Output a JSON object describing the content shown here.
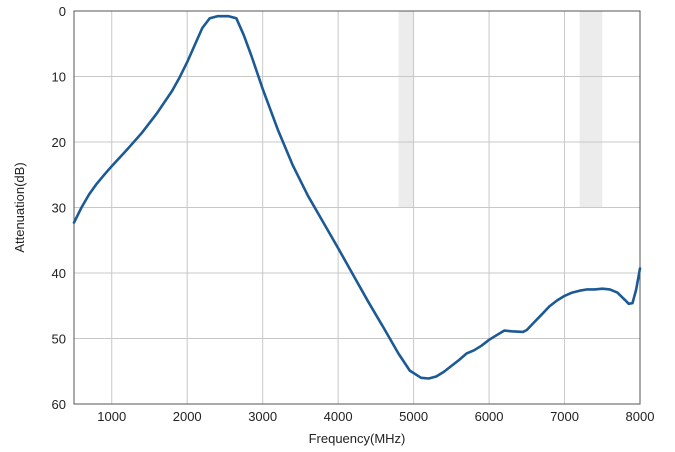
{
  "chart_data": {
    "type": "line",
    "xlabel": "Frequency(MHz)",
    "ylabel": "Attenuation(dB)",
    "xlim": [
      500,
      8000
    ],
    "ylim": [
      0,
      60
    ],
    "y_inverted": true,
    "grid": true,
    "legend": "none",
    "x_ticks": [
      1000,
      2000,
      3000,
      4000,
      5000,
      6000,
      7000,
      8000
    ],
    "y_ticks": [
      0,
      10,
      20,
      30,
      40,
      50,
      60
    ],
    "shaded_bands": [
      {
        "x": [
          4800,
          5000
        ],
        "y": [
          0,
          30
        ]
      },
      {
        "x": [
          7200,
          7500
        ],
        "y": [
          0,
          30
        ]
      }
    ],
    "series": [
      {
        "color": "#1c5a96",
        "points": [
          [
            500,
            32.3
          ],
          [
            600,
            30.0
          ],
          [
            700,
            28.0
          ],
          [
            800,
            26.4
          ],
          [
            900,
            25.0
          ],
          [
            1000,
            23.7
          ],
          [
            1200,
            21.2
          ],
          [
            1400,
            18.6
          ],
          [
            1600,
            15.6
          ],
          [
            1800,
            12.2
          ],
          [
            1900,
            10.1
          ],
          [
            2000,
            7.8
          ],
          [
            2100,
            5.2
          ],
          [
            2200,
            2.6
          ],
          [
            2300,
            1.1
          ],
          [
            2400,
            0.8
          ],
          [
            2550,
            0.8
          ],
          [
            2650,
            1.1
          ],
          [
            2750,
            3.7
          ],
          [
            2850,
            6.8
          ],
          [
            3000,
            11.9
          ],
          [
            3200,
            18.1
          ],
          [
            3400,
            23.6
          ],
          [
            3600,
            28.2
          ],
          [
            3800,
            32.2
          ],
          [
            4000,
            36.2
          ],
          [
            4200,
            40.3
          ],
          [
            4400,
            44.4
          ],
          [
            4600,
            48.3
          ],
          [
            4800,
            52.3
          ],
          [
            4950,
            54.9
          ],
          [
            5100,
            56.0
          ],
          [
            5200,
            56.1
          ],
          [
            5300,
            55.8
          ],
          [
            5400,
            55.1
          ],
          [
            5500,
            54.2
          ],
          [
            5600,
            53.3
          ],
          [
            5700,
            52.3
          ],
          [
            5800,
            51.8
          ],
          [
            5900,
            51.1
          ],
          [
            6000,
            50.2
          ],
          [
            6100,
            49.5
          ],
          [
            6200,
            48.8
          ],
          [
            6300,
            48.9
          ],
          [
            6450,
            49.0
          ],
          [
            6500,
            48.7
          ],
          [
            6600,
            47.5
          ],
          [
            6700,
            46.3
          ],
          [
            6800,
            45.1
          ],
          [
            6900,
            44.2
          ],
          [
            7000,
            43.5
          ],
          [
            7100,
            43.0
          ],
          [
            7200,
            42.7
          ],
          [
            7300,
            42.5
          ],
          [
            7400,
            42.5
          ],
          [
            7500,
            42.4
          ],
          [
            7600,
            42.5
          ],
          [
            7700,
            43.0
          ],
          [
            7800,
            44.1
          ],
          [
            7850,
            44.7
          ],
          [
            7900,
            44.6
          ],
          [
            7950,
            42.5
          ],
          [
            8000,
            39.3
          ]
        ]
      }
    ]
  }
}
